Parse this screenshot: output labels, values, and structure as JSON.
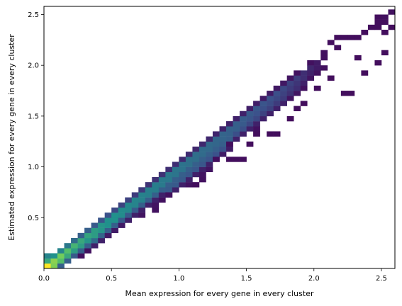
{
  "chart_data": {
    "type": "heatmap",
    "title": "",
    "xlabel": "Mean expression for every gene in every cluster",
    "ylabel": "Estimated expression for every gene in every cluster",
    "xlim": [
      0.0,
      2.6
    ],
    "ylim": [
      0.0,
      2.58
    ],
    "xticks": [
      0.0,
      0.5,
      1.0,
      1.5,
      2.0,
      2.5
    ],
    "xtick_labels": [
      "0.0",
      "0.5",
      "1.0",
      "1.5",
      "2.0",
      "2.5"
    ],
    "yticks": [
      0.5,
      1.0,
      1.5,
      2.0,
      2.5
    ],
    "ytick_labels": [
      "0.5",
      "1.0",
      "1.5",
      "2.0",
      "2.5"
    ],
    "bins_x": 52,
    "bins_y": 52,
    "colormap": "viridis",
    "colormap_stops": [
      "#440154",
      "#3b528b",
      "#21918c",
      "#5ec962",
      "#fde725"
    ],
    "grid": false,
    "cells": [
      [
        0.025,
        0.025,
        1.0
      ],
      [
        0.025,
        0.075,
        0.6
      ],
      [
        0.025,
        0.125,
        0.45
      ],
      [
        0.075,
        0.025,
        0.8
      ],
      [
        0.075,
        0.075,
        0.82
      ],
      [
        0.075,
        0.125,
        0.5
      ],
      [
        0.125,
        0.025,
        0.3
      ],
      [
        0.125,
        0.075,
        0.7
      ],
      [
        0.125,
        0.125,
        0.78
      ],
      [
        0.125,
        0.175,
        0.45
      ],
      [
        0.175,
        0.075,
        0.3
      ],
      [
        0.175,
        0.125,
        0.6
      ],
      [
        0.175,
        0.175,
        0.7
      ],
      [
        0.175,
        0.225,
        0.4
      ],
      [
        0.225,
        0.125,
        0.28
      ],
      [
        0.225,
        0.175,
        0.55
      ],
      [
        0.225,
        0.225,
        0.65
      ],
      [
        0.225,
        0.275,
        0.35
      ],
      [
        0.275,
        0.125,
        0.05
      ],
      [
        0.275,
        0.175,
        0.3
      ],
      [
        0.275,
        0.225,
        0.55
      ],
      [
        0.275,
        0.275,
        0.6
      ],
      [
        0.275,
        0.325,
        0.3
      ],
      [
        0.325,
        0.175,
        0.05
      ],
      [
        0.325,
        0.225,
        0.3
      ],
      [
        0.325,
        0.275,
        0.52
      ],
      [
        0.325,
        0.325,
        0.58
      ],
      [
        0.325,
        0.375,
        0.3
      ],
      [
        0.375,
        0.225,
        0.1
      ],
      [
        0.375,
        0.275,
        0.35
      ],
      [
        0.375,
        0.325,
        0.55
      ],
      [
        0.375,
        0.375,
        0.55
      ],
      [
        0.375,
        0.425,
        0.28
      ],
      [
        0.425,
        0.275,
        0.1
      ],
      [
        0.425,
        0.325,
        0.32
      ],
      [
        0.425,
        0.375,
        0.52
      ],
      [
        0.425,
        0.425,
        0.52
      ],
      [
        0.425,
        0.475,
        0.26
      ],
      [
        0.475,
        0.325,
        0.08
      ],
      [
        0.475,
        0.375,
        0.3
      ],
      [
        0.475,
        0.425,
        0.5
      ],
      [
        0.475,
        0.475,
        0.5
      ],
      [
        0.475,
        0.525,
        0.25
      ],
      [
        0.525,
        0.375,
        0.08
      ],
      [
        0.525,
        0.425,
        0.3
      ],
      [
        0.525,
        0.475,
        0.5
      ],
      [
        0.525,
        0.525,
        0.5
      ],
      [
        0.525,
        0.575,
        0.22
      ],
      [
        0.575,
        0.425,
        0.08
      ],
      [
        0.575,
        0.475,
        0.28
      ],
      [
        0.575,
        0.525,
        0.48
      ],
      [
        0.575,
        0.575,
        0.48
      ],
      [
        0.575,
        0.625,
        0.2
      ],
      [
        0.625,
        0.475,
        0.1
      ],
      [
        0.625,
        0.525,
        0.28
      ],
      [
        0.625,
        0.575,
        0.46
      ],
      [
        0.625,
        0.625,
        0.46
      ],
      [
        0.625,
        0.675,
        0.2
      ],
      [
        0.675,
        0.525,
        0.1
      ],
      [
        0.675,
        0.575,
        0.28
      ],
      [
        0.675,
        0.625,
        0.45
      ],
      [
        0.675,
        0.675,
        0.45
      ],
      [
        0.675,
        0.725,
        0.18
      ],
      [
        0.725,
        0.525,
        0.06
      ],
      [
        0.725,
        0.575,
        0.1
      ],
      [
        0.725,
        0.625,
        0.3
      ],
      [
        0.725,
        0.675,
        0.44
      ],
      [
        0.725,
        0.725,
        0.44
      ],
      [
        0.725,
        0.775,
        0.18
      ],
      [
        0.775,
        0.625,
        0.1
      ],
      [
        0.775,
        0.675,
        0.3
      ],
      [
        0.775,
        0.725,
        0.43
      ],
      [
        0.775,
        0.775,
        0.43
      ],
      [
        0.775,
        0.825,
        0.15
      ],
      [
        0.825,
        0.575,
        0.05
      ],
      [
        0.825,
        0.625,
        0.06
      ],
      [
        0.825,
        0.675,
        0.1
      ],
      [
        0.825,
        0.725,
        0.3
      ],
      [
        0.825,
        0.775,
        0.42
      ],
      [
        0.825,
        0.825,
        0.42
      ],
      [
        0.825,
        0.875,
        0.15
      ],
      [
        0.875,
        0.675,
        0.05
      ],
      [
        0.875,
        0.725,
        0.1
      ],
      [
        0.875,
        0.775,
        0.3
      ],
      [
        0.875,
        0.825,
        0.41
      ],
      [
        0.875,
        0.875,
        0.41
      ],
      [
        0.875,
        0.925,
        0.15
      ],
      [
        0.925,
        0.725,
        0.1
      ],
      [
        0.925,
        0.775,
        0.28
      ],
      [
        0.925,
        0.825,
        0.3
      ],
      [
        0.925,
        0.875,
        0.4
      ],
      [
        0.925,
        0.925,
        0.4
      ],
      [
        0.925,
        0.975,
        0.14
      ],
      [
        0.975,
        0.775,
        0.1
      ],
      [
        0.975,
        0.825,
        0.28
      ],
      [
        0.975,
        0.875,
        0.3
      ],
      [
        0.975,
        0.925,
        0.39
      ],
      [
        0.975,
        0.975,
        0.39
      ],
      [
        0.975,
        1.025,
        0.14
      ],
      [
        1.025,
        0.825,
        0.1
      ],
      [
        1.025,
        0.875,
        0.28
      ],
      [
        1.025,
        0.925,
        0.3
      ],
      [
        1.025,
        0.975,
        0.38
      ],
      [
        1.025,
        1.025,
        0.38
      ],
      [
        1.025,
        1.075,
        0.13
      ],
      [
        1.075,
        0.825,
        0.06
      ],
      [
        1.075,
        0.875,
        0.1
      ],
      [
        1.075,
        0.925,
        0.27
      ],
      [
        1.075,
        0.975,
        0.3
      ],
      [
        1.075,
        1.025,
        0.37
      ],
      [
        1.075,
        1.075,
        0.37
      ],
      [
        1.075,
        1.125,
        0.13
      ],
      [
        1.125,
        0.925,
        0.1
      ],
      [
        1.125,
        0.975,
        0.27
      ],
      [
        1.125,
        1.025,
        0.3
      ],
      [
        1.125,
        1.075,
        0.36
      ],
      [
        1.125,
        1.125,
        0.36
      ],
      [
        1.125,
        1.175,
        0.12
      ],
      [
        1.175,
        0.875,
        0.05
      ],
      [
        1.175,
        0.925,
        0.06
      ],
      [
        1.175,
        0.975,
        0.1
      ],
      [
        1.175,
        1.025,
        0.27
      ],
      [
        1.175,
        1.075,
        0.3
      ],
      [
        1.175,
        1.125,
        0.35
      ],
      [
        1.175,
        1.175,
        0.35
      ],
      [
        1.175,
        1.225,
        0.12
      ],
      [
        1.225,
        0.975,
        0.06
      ],
      [
        1.225,
        1.025,
        0.1
      ],
      [
        1.225,
        1.075,
        0.26
      ],
      [
        1.225,
        1.125,
        0.3
      ],
      [
        1.225,
        1.175,
        0.34
      ],
      [
        1.225,
        1.225,
        0.34
      ],
      [
        1.225,
        1.275,
        0.12
      ],
      [
        1.275,
        1.075,
        0.08
      ],
      [
        1.275,
        1.125,
        0.25
      ],
      [
        1.275,
        1.175,
        0.3
      ],
      [
        1.275,
        1.225,
        0.33
      ],
      [
        1.275,
        1.275,
        0.33
      ],
      [
        1.275,
        1.325,
        0.11
      ],
      [
        1.325,
        1.125,
        0.08
      ],
      [
        1.325,
        1.175,
        0.25
      ],
      [
        1.325,
        1.225,
        0.3
      ],
      [
        1.325,
        1.275,
        0.32
      ],
      [
        1.325,
        1.325,
        0.32
      ],
      [
        1.325,
        1.375,
        0.11
      ],
      [
        1.375,
        1.175,
        0.08
      ],
      [
        1.375,
        1.225,
        0.24
      ],
      [
        1.375,
        1.275,
        0.3
      ],
      [
        1.375,
        1.325,
        0.31
      ],
      [
        1.375,
        1.375,
        0.31
      ],
      [
        1.375,
        1.425,
        0.1
      ],
      [
        1.425,
        1.275,
        0.1
      ],
      [
        1.425,
        1.325,
        0.24
      ],
      [
        1.425,
        1.375,
        0.3
      ],
      [
        1.425,
        1.425,
        0.3
      ],
      [
        1.425,
        1.475,
        0.1
      ],
      [
        1.475,
        1.325,
        0.1
      ],
      [
        1.475,
        1.375,
        0.24
      ],
      [
        1.475,
        1.425,
        0.28
      ],
      [
        1.475,
        1.475,
        0.29
      ],
      [
        1.475,
        1.525,
        0.1
      ],
      [
        1.525,
        1.375,
        0.1
      ],
      [
        1.525,
        1.425,
        0.22
      ],
      [
        1.525,
        1.475,
        0.26
      ],
      [
        1.525,
        1.525,
        0.28
      ],
      [
        1.525,
        1.575,
        0.09
      ],
      [
        1.575,
        1.375,
        0.05
      ],
      [
        1.575,
        1.425,
        0.1
      ],
      [
        1.575,
        1.475,
        0.22
      ],
      [
        1.575,
        1.525,
        0.25
      ],
      [
        1.575,
        1.575,
        0.27
      ],
      [
        1.575,
        1.625,
        0.09
      ],
      [
        1.625,
        1.475,
        0.1
      ],
      [
        1.625,
        1.525,
        0.2
      ],
      [
        1.625,
        1.575,
        0.24
      ],
      [
        1.625,
        1.625,
        0.26
      ],
      [
        1.625,
        1.675,
        0.08
      ],
      [
        1.675,
        1.525,
        0.1
      ],
      [
        1.675,
        1.575,
        0.2
      ],
      [
        1.675,
        1.625,
        0.23
      ],
      [
        1.675,
        1.675,
        0.25
      ],
      [
        1.675,
        1.725,
        0.08
      ],
      [
        1.725,
        1.575,
        0.1
      ],
      [
        1.725,
        1.625,
        0.18
      ],
      [
        1.725,
        1.675,
        0.22
      ],
      [
        1.725,
        1.725,
        0.24
      ],
      [
        1.725,
        1.775,
        0.07
      ],
      [
        1.775,
        1.625,
        0.1
      ],
      [
        1.775,
        1.675,
        0.18
      ],
      [
        1.775,
        1.725,
        0.2
      ],
      [
        1.775,
        1.775,
        0.22
      ],
      [
        1.775,
        1.825,
        0.07
      ],
      [
        1.825,
        1.675,
        0.06
      ],
      [
        1.825,
        1.725,
        0.15
      ],
      [
        1.825,
        1.775,
        0.18
      ],
      [
        1.825,
        1.825,
        0.2
      ],
      [
        1.825,
        1.875,
        0.06
      ],
      [
        1.875,
        1.725,
        0.06
      ],
      [
        1.875,
        1.775,
        0.14
      ],
      [
        1.875,
        1.825,
        0.16
      ],
      [
        1.875,
        1.875,
        0.18
      ],
      [
        1.875,
        1.925,
        0.05
      ],
      [
        1.925,
        1.775,
        0.05
      ],
      [
        1.925,
        1.825,
        0.1
      ],
      [
        1.925,
        1.875,
        0.14
      ],
      [
        1.925,
        1.925,
        0.14
      ],
      [
        1.975,
        1.875,
        0.06
      ],
      [
        1.975,
        1.925,
        0.1
      ],
      [
        1.975,
        1.975,
        0.12
      ],
      [
        1.975,
        2.025,
        0.05
      ],
      [
        2.025,
        1.925,
        0.05
      ],
      [
        2.025,
        1.975,
        0.08
      ],
      [
        2.025,
        2.025,
        0.08
      ],
      [
        2.075,
        1.975,
        0.05
      ],
      [
        2.075,
        2.075,
        0.05
      ],
      [
        2.075,
        2.125,
        0.05
      ],
      [
        2.125,
        2.225,
        0.04
      ],
      [
        2.175,
        2.175,
        0.04
      ],
      [
        2.175,
        2.275,
        0.04
      ],
      [
        2.225,
        2.275,
        0.04
      ],
      [
        2.275,
        2.275,
        0.04
      ],
      [
        2.325,
        2.275,
        0.04
      ],
      [
        2.375,
        2.325,
        0.04
      ],
      [
        2.425,
        2.375,
        0.04
      ],
      [
        2.475,
        2.475,
        0.04
      ],
      [
        2.525,
        2.475,
        0.05
      ],
      [
        2.575,
        2.525,
        0.05
      ],
      [
        0.925,
        0.725,
        0.05
      ],
      [
        1.125,
        0.825,
        0.04
      ],
      [
        1.275,
        1.075,
        0.04
      ],
      [
        1.375,
        1.075,
        0.04
      ],
      [
        1.425,
        1.075,
        0.04
      ],
      [
        1.475,
        1.075,
        0.04
      ],
      [
        1.375,
        1.225,
        0.04
      ],
      [
        1.525,
        1.225,
        0.04
      ],
      [
        1.675,
        1.325,
        0.04
      ],
      [
        1.725,
        1.325,
        0.04
      ],
      [
        1.575,
        1.325,
        0.04
      ],
      [
        1.825,
        1.475,
        0.04
      ],
      [
        1.875,
        1.575,
        0.04
      ],
      [
        1.925,
        1.625,
        0.04
      ],
      [
        2.025,
        1.775,
        0.04
      ],
      [
        2.125,
        1.875,
        0.04
      ],
      [
        2.225,
        1.725,
        0.04
      ],
      [
        2.275,
        1.725,
        0.04
      ],
      [
        2.375,
        1.925,
        0.04
      ],
      [
        2.475,
        2.025,
        0.04
      ],
      [
        2.525,
        2.125,
        0.04
      ],
      [
        2.325,
        2.075,
        0.04
      ],
      [
        2.475,
        2.375,
        0.04
      ],
      [
        2.525,
        2.325,
        0.04
      ],
      [
        2.575,
        2.375,
        0.04
      ],
      [
        2.475,
        2.425,
        0.04
      ],
      [
        2.525,
        2.425,
        0.04
      ],
      [
        2.625,
        2.475,
        0.04
      ]
    ]
  }
}
